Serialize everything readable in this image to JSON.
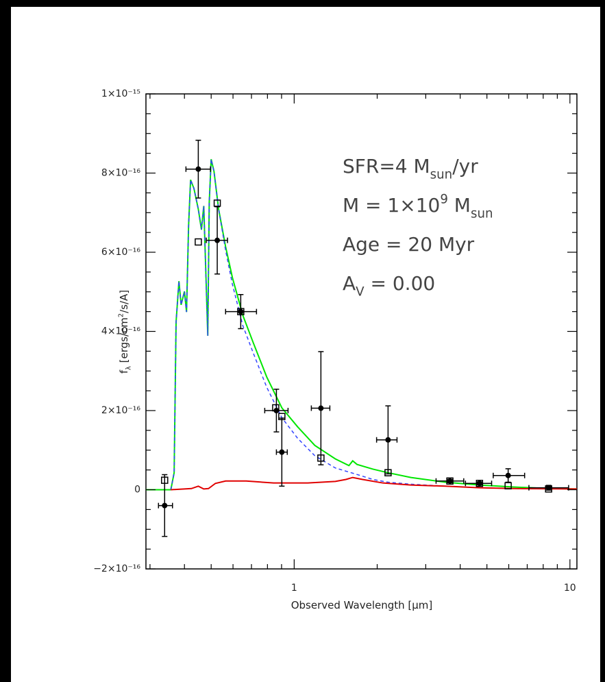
{
  "chart_data": {
    "type": "scatter",
    "xscale": "log",
    "xlabel": "Observed Wavelength [μm]",
    "ylabel": [
      {
        "text": "f"
      },
      {
        "text": "λ",
        "shift": "sub"
      },
      {
        "text": " [ergs/cm"
      },
      {
        "text": "2",
        "shift": "sup"
      },
      {
        "text": "/s/A]"
      }
    ],
    "annotation": [
      [
        {
          "text": "SFR=4 M"
        },
        {
          "text": "sun",
          "shift": "sub"
        },
        {
          "text": "/yr"
        }
      ],
      [
        {
          "text": "M = 1×10"
        },
        {
          "text": "9",
          "shift": "sup"
        },
        {
          "text": " M"
        },
        {
          "text": "sun",
          "shift": "sub"
        }
      ],
      [
        {
          "text": "Age = 20 Myr"
        }
      ],
      [
        {
          "text": "A"
        },
        {
          "text": "V",
          "shift": "sub"
        },
        {
          "text": " = 0.00"
        }
      ]
    ],
    "xlim": [
      0.29,
      10.6
    ],
    "ylim": [
      -2e-16,
      1e-15
    ],
    "xticks": [
      1,
      10
    ],
    "xminorticks": [
      0.3,
      0.4,
      0.5,
      0.6,
      0.7,
      0.8,
      0.9,
      2,
      3,
      4,
      5,
      6,
      7,
      8,
      9
    ],
    "yticks": [
      {
        "value": -2e-16,
        "label": "−2×10⁻¹⁶"
      },
      0,
      {
        "value": 2e-16,
        "label": "2×10⁻¹⁶"
      },
      {
        "value": 4e-16,
        "label": "4×10⁻¹⁶"
      },
      {
        "value": 6e-16,
        "label": "6×10⁻¹⁶"
      },
      {
        "value": 8e-16,
        "label": "8×10⁻¹⁶"
      },
      {
        "value": 1e-15,
        "label": "1×10⁻¹⁵"
      }
    ],
    "yminorticks": [
      -1.5e-16,
      -1e-16,
      -5e-17,
      5e-17,
      1e-16,
      1.5e-16,
      2.5e-16,
      3e-16,
      3.5e-16,
      4.5e-16,
      5e-16,
      5.5e-16,
      6.5e-16,
      7e-16,
      7.5e-16,
      8.5e-16,
      9e-16,
      9.5e-16
    ],
    "lines": [
      {
        "color": "#00e600",
        "style": "solid",
        "x": [
          0.29,
          0.357,
          0.367,
          0.373,
          0.382,
          0.389,
          0.4,
          0.407,
          0.414,
          0.421,
          0.433,
          0.449,
          0.461,
          0.47,
          0.478,
          0.486,
          0.492,
          0.5,
          0.512,
          0.532,
          0.564,
          0.597,
          0.651,
          0.71,
          0.795,
          0.902,
          1.029,
          1.188,
          1.41,
          1.58,
          1.63,
          1.69,
          1.93,
          2.19,
          2.65,
          3.53,
          4.7,
          6.25,
          8.32,
          10.6
        ],
        "values": [
          0,
          0,
          4.3e-17,
          4.24e-16,
          5.27e-16,
          4.67e-16,
          5.01e-16,
          4.49e-16,
          6.66e-16,
          7.83e-16,
          7.61e-16,
          7.09e-16,
          6.57e-16,
          7.17e-16,
          5.53e-16,
          3.89e-16,
          7.26e-16,
          8.35e-16,
          8.04e-16,
          7.09e-16,
          6.14e-16,
          5.36e-16,
          4.41e-16,
          3.72e-16,
          2.85e-16,
          2.07e-16,
          1.59e-16,
          1.12e-16,
          7.8e-17,
          6.1e-17,
          7.3e-17,
          6.4e-17,
          5.2e-17,
          4.3e-17,
          3.1e-17,
          1.9e-17,
          1.2e-17,
          7e-18,
          3e-18,
          2e-18
        ]
      },
      {
        "color": "#3344ff",
        "style": "dashed",
        "x": [
          0.357,
          0.367,
          0.373,
          0.382,
          0.389,
          0.4,
          0.407,
          0.414,
          0.421,
          0.433,
          0.449,
          0.461,
          0.47,
          0.478,
          0.486,
          0.492,
          0.5,
          0.512,
          0.532,
          0.564,
          0.597,
          0.651,
          0.71,
          0.795,
          0.902,
          1.029,
          1.188,
          1.41,
          1.7,
          1.93,
          2.19,
          2.65,
          3.53,
          4.7,
          6.25,
          10.6
        ],
        "values": [
          0,
          4.3e-17,
          4.24e-16,
          5.27e-16,
          4.67e-16,
          5.01e-16,
          4.49e-16,
          6.66e-16,
          7.83e-16,
          7.61e-16,
          7.09e-16,
          6.57e-16,
          7.17e-16,
          5.53e-16,
          3.89e-16,
          7.26e-16,
          8.35e-16,
          8.04e-16,
          7.09e-16,
          6.05e-16,
          5.19e-16,
          4.15e-16,
          3.46e-16,
          2.59e-16,
          1.82e-16,
          1.3e-16,
          8.6e-17,
          5.5e-17,
          3.8e-17,
          2.6e-17,
          1.9e-17,
          1.4e-17,
          9e-18,
          5e-18,
          3e-18,
          2e-18
        ]
      },
      {
        "color": "#e00000",
        "style": "solid",
        "x": [
          0.357,
          0.424,
          0.449,
          0.47,
          0.489,
          0.518,
          0.564,
          0.67,
          0.842,
          1.12,
          1.41,
          1.54,
          1.63,
          1.77,
          2.1,
          2.65,
          3.53,
          4.7,
          6.25,
          10.6
        ],
        "values": [
          0,
          3e-18,
          9e-18,
          2e-18,
          3e-18,
          1.6e-17,
          2.2e-17,
          2.2e-17,
          1.7e-17,
          1.7e-17,
          2.1e-17,
          2.6e-17,
          3.1e-17,
          2.6e-17,
          1.7e-17,
          1.2e-17,
          9e-18,
          5e-18,
          3e-18,
          2e-18
        ]
      }
    ],
    "series": [
      {
        "marker": "filled-circle",
        "color": "#000000",
        "x": [
          0.339,
          0.449,
          0.526,
          0.64,
          0.862,
          0.902,
          1.25,
          2.19,
          3.67,
          4.7,
          5.97,
          8.37
        ],
        "values": [
          -4e-17,
          8.1e-16,
          6.3e-16,
          4.5e-16,
          2e-16,
          9.5e-17,
          2.06e-16,
          1.26e-16,
          2.2e-17,
          1.6e-17,
          3.6e-17,
          5e-18
        ],
        "yerr": [
          7.8e-17,
          7.3e-17,
          8.5e-17,
          4.3e-17,
          5.4e-17,
          8.6e-17,
          1.43e-16,
          8.6e-17,
          4e-18,
          4e-18,
          1.7e-17,
          6e-18
        ],
        "xmin": [
          0.322,
          0.405,
          0.48,
          0.564,
          0.782,
          0.862,
          1.154,
          1.99,
          3.27,
          4.18,
          5.27,
          7.1
        ],
        "xmax": [
          0.362,
          0.497,
          0.573,
          0.73,
          0.95,
          0.944,
          1.347,
          2.36,
          4.12,
          5.2,
          6.85,
          9.89
        ]
      },
      {
        "marker": "open-square",
        "color": "#000000",
        "x": [
          0.339,
          0.449,
          0.526,
          0.64,
          0.857,
          0.902,
          1.25,
          2.19,
          3.67,
          4.7,
          5.97,
          8.37
        ],
        "values": [
          2.4e-17,
          6.26e-16,
          7.24e-16,
          4.5e-16,
          2.07e-16,
          1.85e-16,
          8e-17,
          4.3e-17,
          2.2e-17,
          1.6e-17,
          1e-17,
          2e-18
        ]
      }
    ]
  }
}
